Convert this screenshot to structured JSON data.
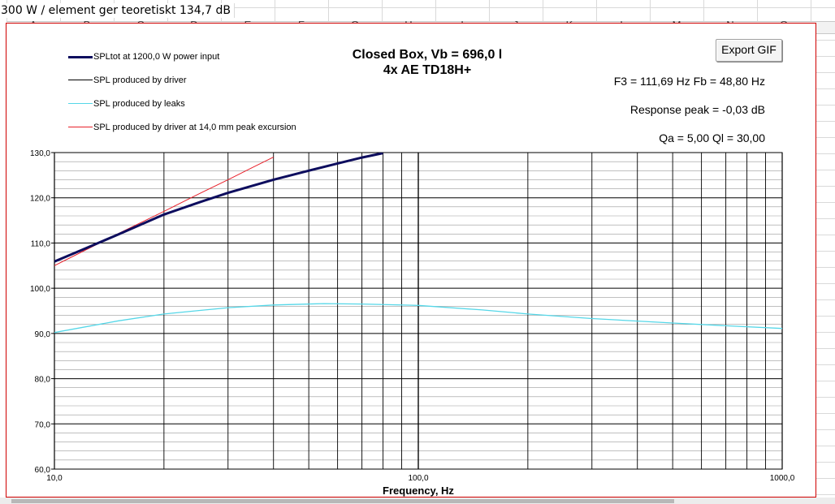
{
  "sheet": {
    "cell_note": "300 W / element ger teoretiskt 134,7 dB",
    "columns": [
      "A",
      "B",
      "C",
      "D",
      "E",
      "F",
      "G",
      "H",
      "I",
      "J",
      "K",
      "L",
      "M",
      "N",
      "O"
    ]
  },
  "export_button_label": "Export GIF",
  "info": {
    "f3_fb": "F3 = 111,69 Hz  Fb = 48,80 Hz",
    "response_peak": "Response peak = -0,03 dB",
    "q_values": "Qa = 5,00  Ql = 30,00"
  },
  "chart_data": {
    "type": "line",
    "title": "Closed Box, Vb = 696,0 l",
    "subtitle": "4x AE TD18H+",
    "xlabel": "Frequency, Hz",
    "ylabel": "",
    "xscale": "log",
    "xlim": [
      10,
      1000
    ],
    "ylim": [
      60,
      130
    ],
    "x_ticks": [
      {
        "value": 10,
        "label": "10,0"
      },
      {
        "value": 100,
        "label": "100,0"
      },
      {
        "value": 1000,
        "label": "1000,0"
      }
    ],
    "y_ticks": [
      {
        "value": 60,
        "label": "60,0"
      },
      {
        "value": 70,
        "label": "70,0"
      },
      {
        "value": 80,
        "label": "80,0"
      },
      {
        "value": 90,
        "label": "90,0"
      },
      {
        "value": 100,
        "label": "100,0"
      },
      {
        "value": 110,
        "label": "110,0"
      },
      {
        "value": 120,
        "label": "120,0"
      },
      {
        "value": 130,
        "label": "130,0"
      }
    ],
    "grid": true,
    "legend_position": "top-left",
    "series": [
      {
        "name": "SPLtot at 1200,0 W power input",
        "color": "#0d0d5e",
        "x": [
          10,
          12,
          15,
          20,
          25,
          30,
          40,
          50,
          60,
          70,
          80
        ],
        "y": [
          105.9,
          108.6,
          111.9,
          116.3,
          119.0,
          121.1,
          124.0,
          126.0,
          127.6,
          128.9,
          129.9
        ]
      },
      {
        "name": "SPL produced by driver",
        "color": "#000000",
        "x": [
          10,
          12,
          15,
          20,
          25,
          30,
          40,
          50,
          60,
          70,
          80
        ],
        "y": [
          105.8,
          108.5,
          111.8,
          116.2,
          118.9,
          121.0,
          123.9,
          125.9,
          127.5,
          128.8,
          129.8
        ]
      },
      {
        "name": "SPL produced by leaks",
        "color": "#55d7e8",
        "x": [
          10,
          15,
          20,
          30,
          40,
          55,
          70,
          100,
          150,
          200,
          300,
          500,
          700,
          1000
        ],
        "y": [
          90.2,
          92.8,
          94.3,
          95.7,
          96.3,
          96.6,
          96.5,
          96.2,
          95.2,
          94.3,
          93.3,
          92.3,
          91.7,
          91.1
        ]
      },
      {
        "name": "SPL produced by driver at 14,0 mm peak excursion",
        "color": "#e8202a",
        "x": [
          10,
          12,
          15,
          20,
          25,
          30,
          35,
          40
        ],
        "y": [
          105.0,
          108.2,
          112.1,
          117.0,
          120.9,
          124.0,
          126.7,
          129.0
        ]
      }
    ]
  }
}
